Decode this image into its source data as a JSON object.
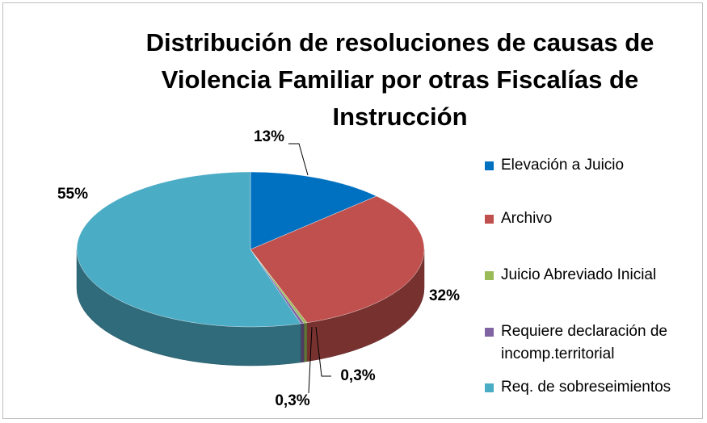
{
  "chart_data": {
    "type": "pie",
    "title": "Distribución de resoluciones de causas de Violencia Familiar por otras Fiscalías de Instrucción",
    "categories": [
      "Elevación a Juicio",
      "Archivo",
      "Juicio Abreviado Inicial",
      "Requiere declaración de incomp.territorial",
      "Req. de sobreseimientos"
    ],
    "values": [
      13,
      32,
      0.3,
      0.3,
      55
    ],
    "value_labels": [
      "13%",
      "32%",
      "0,3%",
      "0,3%",
      "55%"
    ],
    "colors": [
      "#0070c0",
      "#c0504d",
      "#9bbb59",
      "#8064a2",
      "#4bacc6"
    ],
    "legend": "right"
  }
}
